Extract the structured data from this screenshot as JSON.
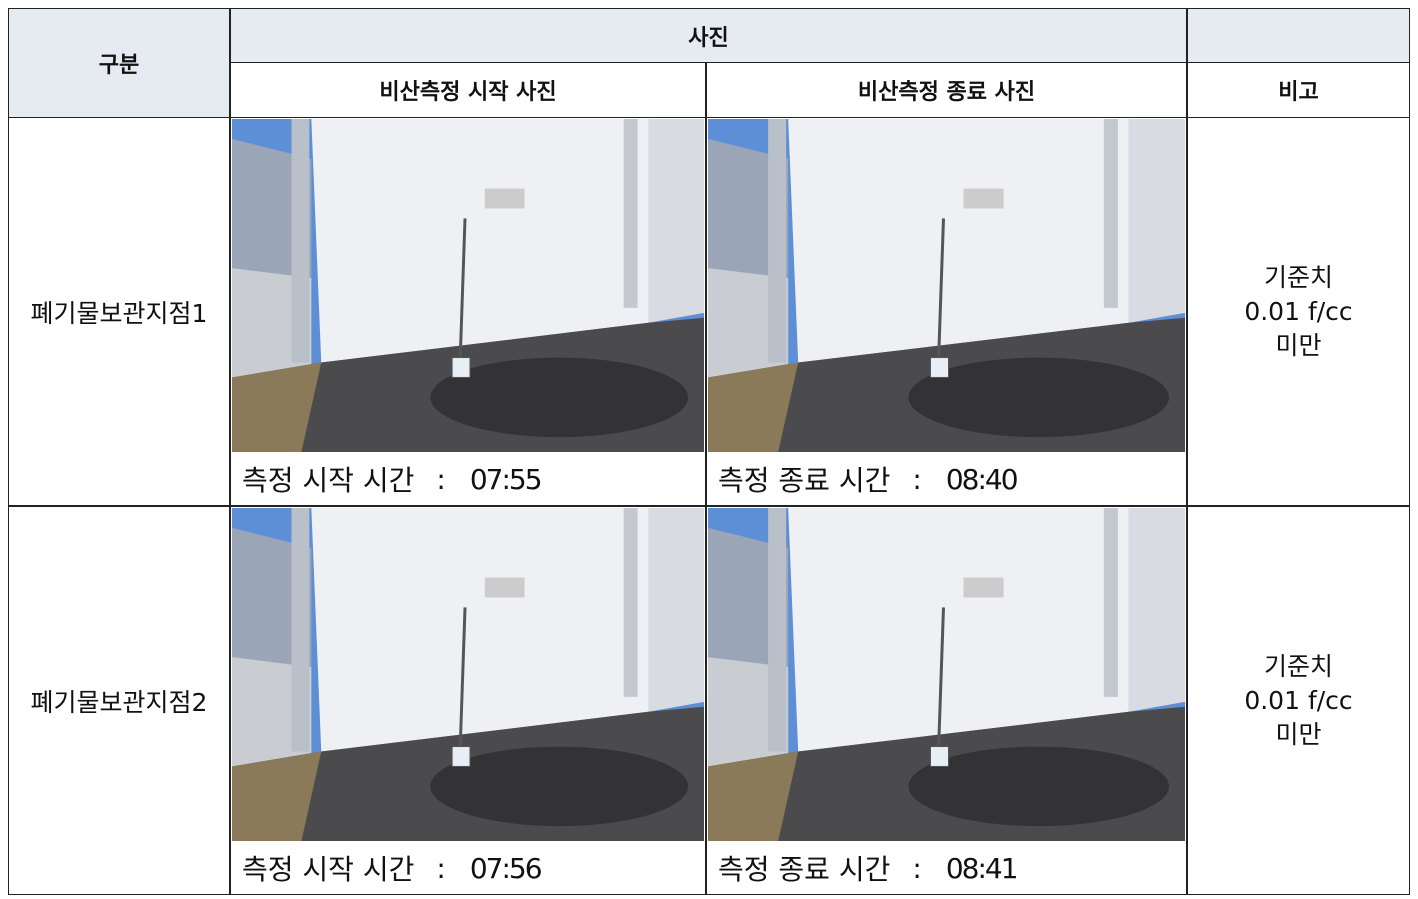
{
  "header": {
    "category": "구분",
    "photos": "사진",
    "start_photo": "비산측정 시작 사진",
    "end_photo": "비산측정 종료 사진",
    "remarks": "비고"
  },
  "rows": [
    {
      "location": "폐기물보관지점1",
      "start": {
        "label": "측정 시작 시간",
        "separator": ":",
        "time": "07:55"
      },
      "end": {
        "label": "측정 종료 시간",
        "separator": ":",
        "time": "08:40"
      },
      "remarks": [
        "기준치",
        "0.01 f/cc",
        "미만"
      ]
    },
    {
      "location": "폐기물보관지점2",
      "start": {
        "label": "측정 시작 시간",
        "separator": ":",
        "time": "07:56"
      },
      "end": {
        "label": "측정 종료 시간",
        "separator": ":",
        "time": "08:41"
      },
      "remarks": [
        "기준치",
        "0.01 f/cc",
        "미만"
      ]
    }
  ]
}
